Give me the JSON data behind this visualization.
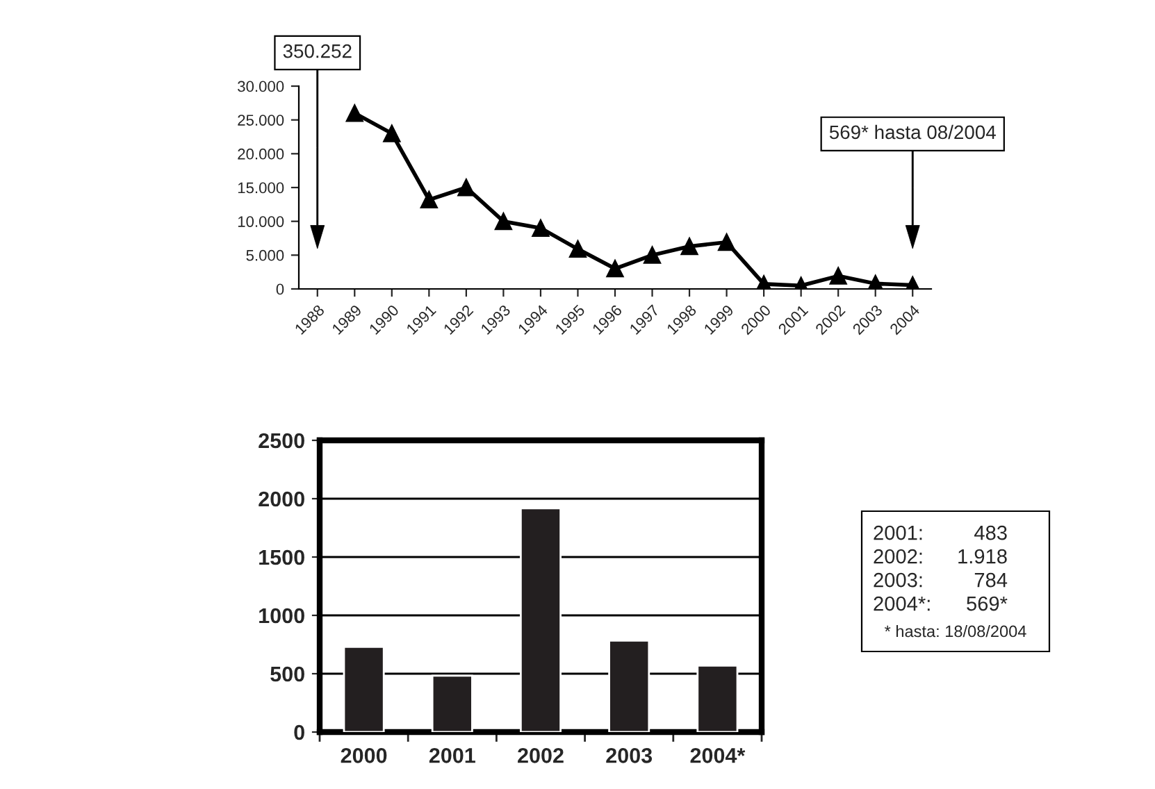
{
  "chart_data": [
    {
      "type": "line",
      "categories": [
        "1988",
        "1989",
        "1990",
        "1991",
        "1992",
        "1993",
        "1994",
        "1995",
        "1996",
        "1997",
        "1998",
        "1999",
        "2000",
        "2001",
        "2002",
        "2003",
        "2004"
      ],
      "series": [
        {
          "color": "#000000",
          "values": [
            null,
            26000,
            23000,
            13200,
            15000,
            10000,
            9000,
            5900,
            3000,
            5000,
            6300,
            6900,
            730,
            483,
            1918,
            784,
            569
          ]
        }
      ],
      "ylim": [
        0,
        30000
      ],
      "yticks": [
        {
          "value": 0,
          "label": "0"
        },
        {
          "value": 5000,
          "label": "5.000"
        },
        {
          "value": 10000,
          "label": "10.000"
        },
        {
          "value": 15000,
          "label": "15.000"
        },
        {
          "value": 20000,
          "label": "20.000"
        },
        {
          "value": 25000,
          "label": "25.000"
        },
        {
          "value": 30000,
          "label": "30.000"
        }
      ],
      "marker": "triangle",
      "line_style": "solid",
      "grid": false,
      "legend": false,
      "annotations": [
        "350.252",
        "569* hasta 08/2004"
      ]
    },
    {
      "type": "bar",
      "categories": [
        "2000",
        "2001",
        "2002",
        "2003",
        "2004*"
      ],
      "series": [
        {
          "color": "#231f20",
          "values": [
            730,
            483,
            1918,
            784,
            569
          ]
        }
      ],
      "ylim": [
        0,
        2500
      ],
      "yticks": [
        0,
        500,
        1000,
        1500,
        2000,
        2500
      ],
      "grid": "y",
      "legend": false,
      "annotations": [
        "2001: 483",
        "2002: 1.918",
        "2003: 784",
        "2004*: 569*",
        "* hasta: 18/08/2004"
      ]
    }
  ]
}
